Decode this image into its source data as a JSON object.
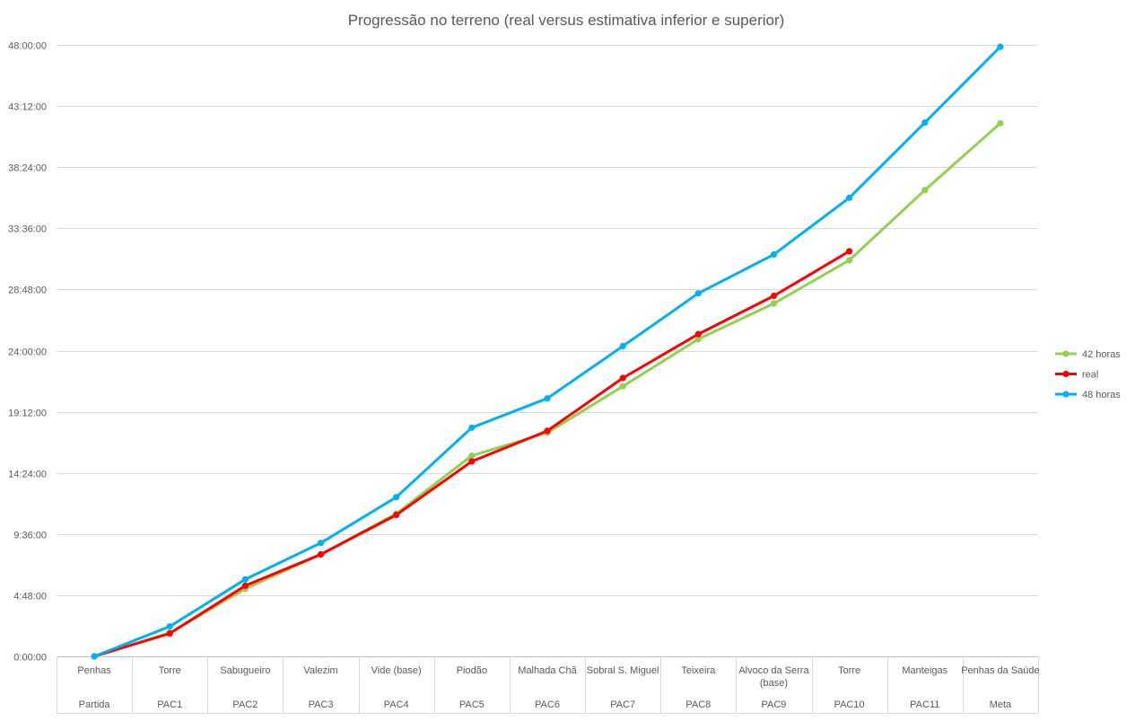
{
  "chart_data": {
    "type": "line",
    "title": "Progressão no terreno (real versus estimativa inferior e superior)",
    "xlabel": "",
    "ylabel": "",
    "categories": [
      {
        "location": "Penhas",
        "checkpoint": "Partida"
      },
      {
        "location": "Torre",
        "checkpoint": "PAC1"
      },
      {
        "location": "Sabugueiro",
        "checkpoint": "PAC2"
      },
      {
        "location": "Valezim",
        "checkpoint": "PAC3"
      },
      {
        "location": "Vide (base)",
        "checkpoint": "PAC4"
      },
      {
        "location": "Piodão",
        "checkpoint": "PAC5"
      },
      {
        "location": "Malhada Chã",
        "checkpoint": "PAC6"
      },
      {
        "location": "Sobral S. Miguel",
        "checkpoint": "PAC7"
      },
      {
        "location": "Teixeira",
        "checkpoint": "PAC8"
      },
      {
        "location": "Alvoco da Serra (base)",
        "checkpoint": "PAC9"
      },
      {
        "location": "Torre",
        "checkpoint": "PAC10"
      },
      {
        "location": "Manteigas",
        "checkpoint": "PAC11"
      },
      {
        "location": "Penhas da Saúde",
        "checkpoint": "Meta"
      }
    ],
    "y_unit": "hours",
    "ylim": [
      0,
      48
    ],
    "yticks": [
      {
        "value": 0,
        "label": "0:00:00"
      },
      {
        "value": 4.8,
        "label": "4:48:00"
      },
      {
        "value": 9.6,
        "label": "9:36:00"
      },
      {
        "value": 14.4,
        "label": "14:24:00"
      },
      {
        "value": 19.2,
        "label": "19:12:00"
      },
      {
        "value": 24,
        "label": "24:00:00"
      },
      {
        "value": 28.8,
        "label": "28:48:00"
      },
      {
        "value": 33.6,
        "label": "33:36:00"
      },
      {
        "value": 38.4,
        "label": "38:24:00"
      },
      {
        "value": 43.2,
        "label": "43:12:00"
      },
      {
        "value": 48,
        "label": "48:00:00"
      }
    ],
    "grid": "horizontal",
    "legend_position": "right",
    "series": [
      {
        "name": "42 horas",
        "color": "#92d050",
        "values": [
          0,
          1.85,
          5.3,
          8.0,
          11.2,
          15.75,
          17.55,
          21.2,
          24.9,
          27.7,
          31.1,
          36.6,
          41.85
        ]
      },
      {
        "name": "real",
        "color": "#ff0000",
        "values": [
          0,
          1.8,
          5.55,
          8.0,
          11.1,
          15.3,
          17.7,
          21.85,
          25.3,
          28.3,
          31.8,
          null,
          null
        ]
      },
      {
        "name": "48 horas",
        "color": "#00b0f0",
        "values": [
          0,
          2.35,
          6.05,
          8.9,
          12.5,
          17.95,
          20.25,
          24.35,
          28.5,
          31.55,
          36.0,
          41.9,
          47.85
        ]
      }
    ]
  }
}
